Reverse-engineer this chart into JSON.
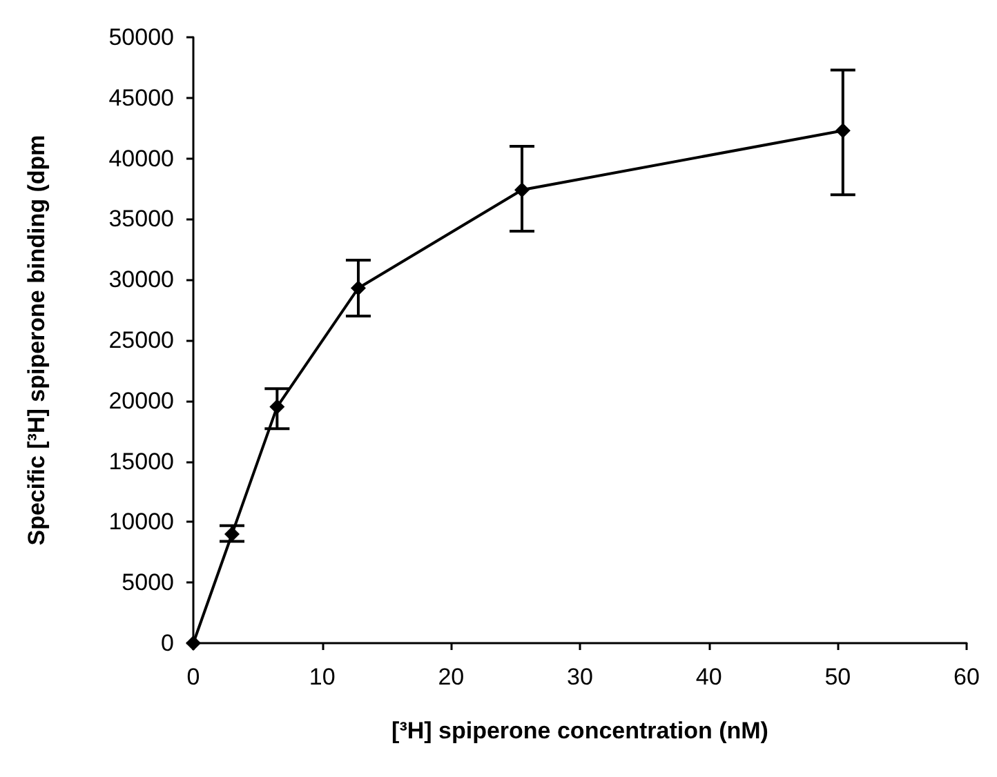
{
  "chart_data": {
    "type": "line",
    "xlabel": "[³H] spiperone concentration (nM)",
    "ylabel": "Specific [³H] spiperone binding (dpm",
    "x": [
      0,
      3,
      6.5,
      12.8,
      25.5,
      50.4
    ],
    "series": [
      {
        "color": "#000000",
        "values": [
          0,
          9000,
          19500,
          29300,
          37400,
          42300
        ],
        "errors": [
          null,
          [
            8400,
            9700
          ],
          [
            17700,
            21000
          ],
          [
            27000,
            31600
          ],
          [
            34000,
            41000
          ],
          [
            37000,
            47300
          ]
        ]
      }
    ],
    "xlim": [
      0,
      60
    ],
    "xticks": [
      0,
      10,
      20,
      30,
      40,
      50,
      60
    ],
    "ylim": [
      0,
      50000
    ],
    "yticks": [
      0,
      5000,
      10000,
      15000,
      20000,
      25000,
      30000,
      35000,
      40000,
      45000,
      50000
    ],
    "marker": "diamond",
    "line_style": "solid"
  }
}
